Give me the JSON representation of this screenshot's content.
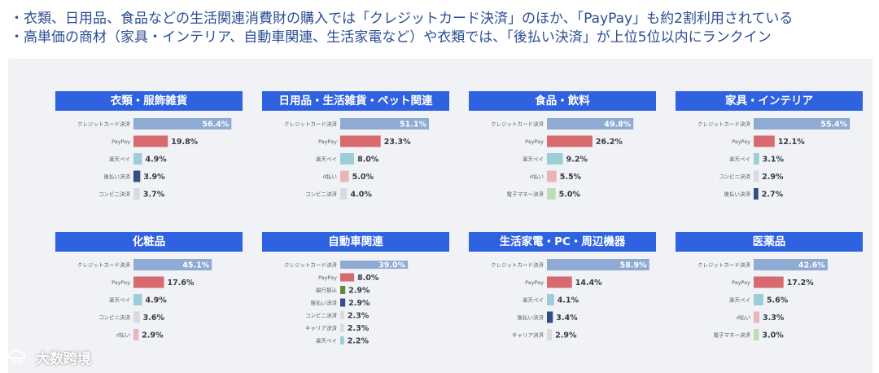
{
  "header": {
    "line1": "・衣類、日用品、食品などの生活関連消費財の購入では「クレジットカード決済」のほか、「PayPay」も約2割利用されている",
    "line2": "・高単価の商材（家具・インテリア、自動車関連、生活家電など）や衣類では、「後払い決済」が上位5位以内にランクイン"
  },
  "watermark": {
    "text": "大数跨境"
  },
  "chart_data": [
    {
      "type": "bar",
      "title": "衣類・服飾雑貨",
      "categories": [
        "クレジットカード決済",
        "PayPay",
        "楽天ペイ",
        "後払い決済",
        "コンビニ決済"
      ],
      "values": [
        56.4,
        19.8,
        4.9,
        3.9,
        3.7
      ],
      "labels": [
        "56.4%",
        "19.8%",
        "4.9%",
        "3.9%",
        "3.7%"
      ],
      "colors": [
        "#8faad3",
        "#d66a6f",
        "#9ccdd8",
        "#2f4f86",
        "#d9dbe3"
      ]
    },
    {
      "type": "bar",
      "title": "日用品・生活雑貨・ペット関連",
      "categories": [
        "クレジットカード決済",
        "PayPay",
        "楽天ペイ",
        "d払い",
        "コンビニ決済"
      ],
      "values": [
        51.1,
        23.3,
        8.0,
        5.0,
        4.0
      ],
      "labels": [
        "51.1%",
        "23.3%",
        "8.0%",
        "5.0%",
        "4.0%"
      ],
      "colors": [
        "#8faad3",
        "#d66a6f",
        "#9ccdd8",
        "#e7b6bb",
        "#d9dbe3"
      ]
    },
    {
      "type": "bar",
      "title": "食品・飲料",
      "categories": [
        "クレジットカード決済",
        "PayPay",
        "楽天ペイ",
        "d払い",
        "電子マネー決済"
      ],
      "values": [
        49.8,
        26.2,
        9.2,
        5.5,
        5.0
      ],
      "labels": [
        "49.8%",
        "26.2%",
        "9.2%",
        "5.5%",
        "5.0%"
      ],
      "colors": [
        "#8faad3",
        "#d66a6f",
        "#9ccdd8",
        "#e7b6bb",
        "#bfdcb4"
      ]
    },
    {
      "type": "bar",
      "title": "家具・インテリア",
      "categories": [
        "クレジットカード決済",
        "PayPay",
        "楽天ペイ",
        "コンビニ決済",
        "後払い決済"
      ],
      "values": [
        55.4,
        12.1,
        3.1,
        2.9,
        2.7
      ],
      "labels": [
        "55.4%",
        "12.1%",
        "3.1%",
        "2.9%",
        "2.7%"
      ],
      "colors": [
        "#8faad3",
        "#d66a6f",
        "#9ccdd8",
        "#d9dbe3",
        "#2f4f86"
      ]
    },
    {
      "type": "bar",
      "title": "化粧品",
      "categories": [
        "クレジットカード決済",
        "PayPay",
        "楽天ペイ",
        "コンビニ決済",
        "d払い"
      ],
      "values": [
        45.1,
        17.6,
        4.9,
        3.6,
        2.9
      ],
      "labels": [
        "45.1%",
        "17.6%",
        "4.9%",
        "3.6%",
        "2.9%"
      ],
      "colors": [
        "#8faad3",
        "#d66a6f",
        "#9ccdd8",
        "#d9dbe3",
        "#e7b6bb"
      ]
    },
    {
      "type": "bar",
      "title": "自動車関連",
      "categories": [
        "クレジットカード決済",
        "PayPay",
        "銀行振込",
        "後払い決済",
        "コンビニ決済",
        "キャリア決済",
        "楽天ペイ"
      ],
      "values": [
        39.0,
        8.0,
        2.9,
        2.9,
        2.3,
        2.3,
        2.2
      ],
      "labels": [
        "39.0%",
        "8.0%",
        "2.9%",
        "2.9%",
        "2.3%",
        "2.3%",
        "2.2%"
      ],
      "colors": [
        "#8faad3",
        "#d66a6f",
        "#5f8a3e",
        "#2f4f86",
        "#d9dbe3",
        "#d9dbe3",
        "#9ccdd8"
      ]
    },
    {
      "type": "bar",
      "title": "生活家電・PC・周辺機器",
      "categories": [
        "クレジットカード決済",
        "PayPay",
        "楽天ペイ",
        "後払い決済",
        "キャリア決済"
      ],
      "values": [
        58.9,
        14.4,
        4.1,
        3.4,
        2.9
      ],
      "labels": [
        "58.9%",
        "14.4%",
        "4.1%",
        "3.4%",
        "2.9%"
      ],
      "colors": [
        "#8faad3",
        "#d66a6f",
        "#9ccdd8",
        "#2f4f86",
        "#d9dbe3"
      ]
    },
    {
      "type": "bar",
      "title": "医薬品",
      "categories": [
        "クレジットカード決済",
        "PayPay",
        "楽天ペイ",
        "d払い",
        "電子マネー決済"
      ],
      "values": [
        42.6,
        17.2,
        5.6,
        3.3,
        3.0
      ],
      "labels": [
        "42.6%",
        "17.2%",
        "5.6%",
        "3.3%",
        "3.0%"
      ],
      "colors": [
        "#8faad3",
        "#d66a6f",
        "#9ccdd8",
        "#e7b6bb",
        "#bfdcb4"
      ]
    }
  ]
}
